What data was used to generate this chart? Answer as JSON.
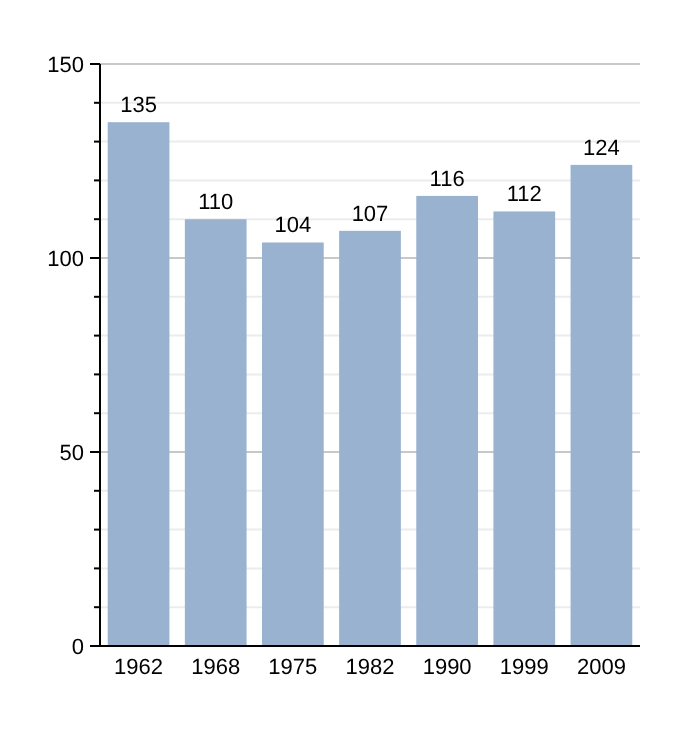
{
  "chart_data": {
    "type": "bar",
    "categories": [
      "1962",
      "1968",
      "1975",
      "1982",
      "1990",
      "1999",
      "2009"
    ],
    "values": [
      135,
      110,
      104,
      107,
      116,
      112,
      124
    ],
    "color": "#98b2cf",
    "ylim": [
      0,
      150
    ],
    "yticks": [
      0,
      {
        "value": 10,
        "label": null
      },
      {
        "value": 20,
        "label": null
      },
      {
        "value": 30,
        "label": null
      },
      {
        "value": 40,
        "label": null
      },
      50,
      {
        "value": 60,
        "label": null
      },
      {
        "value": 70,
        "label": null
      },
      {
        "value": 80,
        "label": null
      },
      {
        "value": 90,
        "label": null
      },
      100,
      {
        "value": 110,
        "label": null
      },
      {
        "value": 120,
        "label": null
      },
      {
        "value": 130,
        "label": null
      },
      {
        "value": 140,
        "label": null
      },
      150
    ],
    "grid": true,
    "data_labels": true
  }
}
